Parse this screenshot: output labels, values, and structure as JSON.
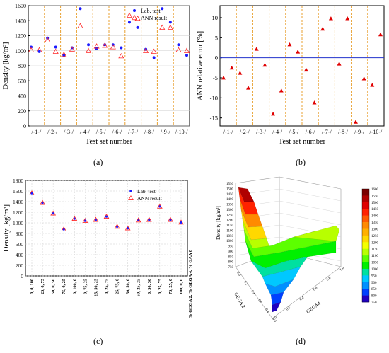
{
  "panels": {
    "a": "(a)",
    "b": "(b)",
    "c": "(c)",
    "d": "(d)"
  },
  "colors": {
    "lab": "#1a1aff",
    "ann_outline": "#ff2a2a",
    "error_marker": "#e00000",
    "zero_line": "#2233cc",
    "divider": "#e8a030",
    "grid": "#cccccc"
  },
  "chart_data": [
    {
      "id": "a",
      "type": "scatter",
      "xlabel": "Test set number",
      "ylabel": "Density [kg/m³]",
      "ylim": [
        0,
        1600
      ],
      "yticks": [
        0,
        200,
        400,
        600,
        800,
        1000,
        1200,
        1400,
        1600
      ],
      "groups": [
        "/-1-/",
        "/-2-/",
        "/-3-/",
        "/-4-/",
        "/-5-/",
        "/-6-/",
        "/-7-/",
        "/-8-/",
        "/-9-/",
        "/-10-/"
      ],
      "legend": [
        "Lab. test",
        "ANN result"
      ],
      "legend_position": "top-right",
      "series": [
        {
          "name": "Lab. test",
          "values": [
            1050,
            990,
            1170,
            1050,
            940,
            1040,
            1560,
            1080,
            1030,
            1080,
            1080,
            1040,
            1380,
            1310,
            1020,
            910,
            1560,
            1380,
            1080,
            940
          ]
        },
        {
          "name": "ANN result",
          "values": [
            1010,
            1010,
            1140,
            990,
            950,
            1020,
            1330,
            1000,
            1060,
            1070,
            1050,
            930,
            1470,
            1430,
            1000,
            990,
            1310,
            1310,
            1010,
            1000
          ]
        }
      ]
    },
    {
      "id": "b",
      "type": "scatter",
      "xlabel": "Test set number",
      "ylabel": "ANN relative error [%]",
      "ylim": [
        -17,
        13
      ],
      "yticks": [
        -15,
        -10,
        -5,
        0,
        5,
        10
      ],
      "groups": [
        "/-1-/",
        "/-2-/",
        "/-3-/",
        "/-4-/",
        "/-5-/",
        "/-6-/",
        "/-7-/",
        "/-8-/",
        "/-9-/",
        "/-10-/"
      ],
      "series": [
        {
          "name": "",
          "values": [
            -5,
            -2.5,
            -3.8,
            -7.5,
            2.2,
            -1.8,
            -14,
            -8.2,
            3.3,
            1.5,
            -3,
            -11.2,
            7.2,
            9.8,
            -1.5,
            9.8,
            -16,
            -5.2,
            -6.8,
            5.8
          ]
        }
      ]
    },
    {
      "id": "c",
      "type": "scatter",
      "ylabel": "Density [kg/m³]",
      "xlabel_right": "% GEGA 2, % GEGA 4, % GAA 8",
      "ylim": [
        0,
        1800
      ],
      "yticks": [
        0,
        200,
        400,
        600,
        800,
        1000,
        1200,
        1400,
        1600,
        1800
      ],
      "categories": [
        "0, 0, 100",
        "25, 0, 75",
        "50, 0, 50",
        "75, 0, 25",
        "0, 100, 0",
        "0, 75, 25",
        "25, 50, 25",
        "0, 25, 75",
        "25, 75, 0",
        "50, 50, 0",
        "50, 25, 25",
        "0, 50, 50",
        "0, 25, 75",
        "75, 25, 0",
        "100, 0, 0"
      ],
      "legend": [
        "Lab. test",
        "ANN result"
      ],
      "legend_position": "top-right",
      "series": [
        {
          "name": "Lab. test",
          "values": [
            1560,
            1380,
            1180,
            880,
            1080,
            1040,
            1060,
            1120,
            930,
            900,
            1050,
            1060,
            1310,
            1060,
            1010
          ]
        },
        {
          "name": "ANN result",
          "values": [
            1560,
            1380,
            1180,
            880,
            1080,
            1040,
            1060,
            1120,
            930,
            900,
            1050,
            1060,
            1310,
            1060,
            1010
          ]
        }
      ]
    },
    {
      "id": "d",
      "type": "surface3d",
      "zlabel": "Density [kg/m³]",
      "xlabel": "GEGA 2",
      "ylabel": "GEGA4",
      "zticks": [
        750,
        800,
        850,
        900,
        950,
        1000,
        1050,
        1100,
        1150,
        1200,
        1250,
        1300,
        1350,
        1400,
        1450,
        1500,
        1550
      ],
      "xticks": [
        "0.0",
        "0.2",
        "0.4",
        "0.6",
        "0.8",
        "1.0"
      ],
      "yticks": [
        "0.0",
        "0.2",
        "0.4",
        "0.6",
        "0.8",
        "1.0"
      ],
      "colorbar": [
        {
          "v": "1600",
          "c": "#7a0000"
        },
        {
          "v": "1550",
          "c": "#b00000"
        },
        {
          "v": "1500",
          "c": "#e00000"
        },
        {
          "v": "1450",
          "c": "#ff2200"
        },
        {
          "v": "1400",
          "c": "#ff5a00"
        },
        {
          "v": "1350",
          "c": "#ff8a00"
        },
        {
          "v": "1300",
          "c": "#ffb000"
        },
        {
          "v": "1250",
          "c": "#ffd800"
        },
        {
          "v": "1200",
          "c": "#f4ff00"
        },
        {
          "v": "1150",
          "c": "#b8ff00"
        },
        {
          "v": "1100",
          "c": "#5cff00"
        },
        {
          "v": "1050",
          "c": "#00f000"
        },
        {
          "v": "1000",
          "c": "#00e0a0"
        },
        {
          "v": "950",
          "c": "#00c8ff"
        },
        {
          "v": "900",
          "c": "#0090ff"
        },
        {
          "v": "850",
          "c": "#0040ff"
        },
        {
          "v": "800",
          "c": "#2000c0"
        },
        {
          "v": "750",
          "c": "#6a00a0"
        }
      ]
    }
  ]
}
